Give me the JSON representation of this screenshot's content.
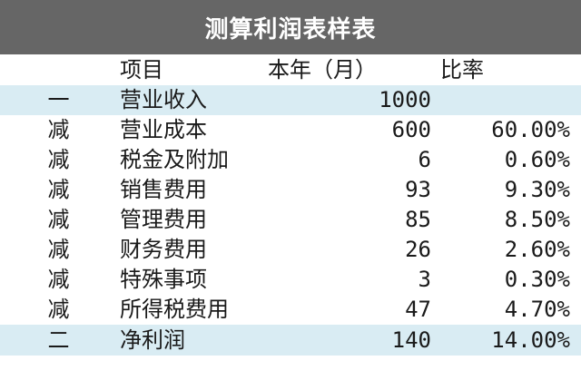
{
  "title": "测算利润表样表",
  "header": {
    "item": "项目",
    "amount": "本年（月）",
    "ratio": "比率"
  },
  "highlight_color": "#d9ecf3",
  "title_bar_color": "#666666",
  "rows": [
    {
      "sign": "一",
      "item": "营业收入",
      "amount": "1000",
      "ratio": "",
      "highlight": true
    },
    {
      "sign": "减",
      "item": "营业成本",
      "amount": "600",
      "ratio": "60.00%",
      "highlight": false
    },
    {
      "sign": "减",
      "item": "税金及附加",
      "amount": "6",
      "ratio": "0.60%",
      "highlight": false
    },
    {
      "sign": "减",
      "item": "销售费用",
      "amount": "93",
      "ratio": "9.30%",
      "highlight": false
    },
    {
      "sign": "减",
      "item": "管理费用",
      "amount": "85",
      "ratio": "8.50%",
      "highlight": false
    },
    {
      "sign": "减",
      "item": "财务费用",
      "amount": "26",
      "ratio": "2.60%",
      "highlight": false
    },
    {
      "sign": "减",
      "item": "特殊事项",
      "amount": "3",
      "ratio": "0.30%",
      "highlight": false
    },
    {
      "sign": "减",
      "item": "所得税费用",
      "amount": "47",
      "ratio": "4.70%",
      "highlight": false
    },
    {
      "sign": "二",
      "item": "净利润",
      "amount": "140",
      "ratio": "14.00%",
      "highlight": true
    }
  ]
}
